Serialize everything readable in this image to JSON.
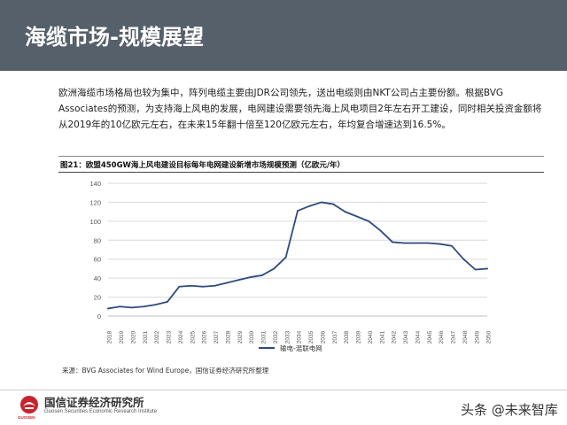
{
  "page": {
    "title": "海缆市场-规模展望",
    "intro": "欧洲海缆市场格局也较为集中，阵列电缆主要由JDR公司领先，送出电缆则由NKT公司占主要份额。根据BVG Associates的预测，为支持海上风电的发展，电网建设需要领先海上风电项目2年左右开工建设，同时相关投资金额将从2019年的10亿欧元左右，在未来15年翻十倍至120亿欧元左右，年均复合增速达到16.5%。",
    "figure_caption": "图21：欧盟450GW海上风电建设目标每年电网建设新增市场规模预测（亿欧元/年）",
    "source": "来源：BVG Associates for Wind Europe，国信证券经济研究所整理",
    "institution_name": "国信证券经济研究所",
    "institution_en": "Guosen Securities Economic Research Institute",
    "institution_abbr": "GUOSEN",
    "watermark": "头条 @未来智库"
  },
  "colors": {
    "header_bg": "#56606a",
    "line": "#2f4a7f",
    "grid": "#d9d9d9",
    "axis_text": "#555555",
    "logo_red": "#c8232c"
  },
  "chart_data": {
    "type": "line",
    "title": "",
    "xlabel": "",
    "ylabel": "",
    "ylim": [
      0,
      140
    ],
    "yticks": [
      0,
      20,
      40,
      60,
      80,
      100,
      120,
      140
    ],
    "grid": true,
    "legend": "bottom",
    "x": [
      "2018",
      "2019",
      "2020",
      "2021",
      "2022",
      "2023",
      "2024",
      "2025",
      "2026",
      "2027",
      "2028",
      "2029",
      "2030",
      "2031",
      "2032",
      "2033",
      "2034",
      "2035",
      "2036",
      "2037",
      "2038",
      "2039",
      "2040",
      "2041",
      "2042",
      "2043",
      "2044",
      "2045",
      "2046",
      "2047",
      "2048",
      "2049",
      "2050"
    ],
    "series": [
      {
        "name": "输电-混联电网",
        "values": [
          8,
          10,
          9,
          10,
          12,
          15,
          31,
          32,
          31,
          32,
          35,
          38,
          41,
          43,
          50,
          62,
          111,
          116,
          120,
          118,
          110,
          105,
          100,
          90,
          78,
          77,
          77,
          77,
          76,
          74,
          60,
          49,
          50
        ]
      }
    ]
  }
}
